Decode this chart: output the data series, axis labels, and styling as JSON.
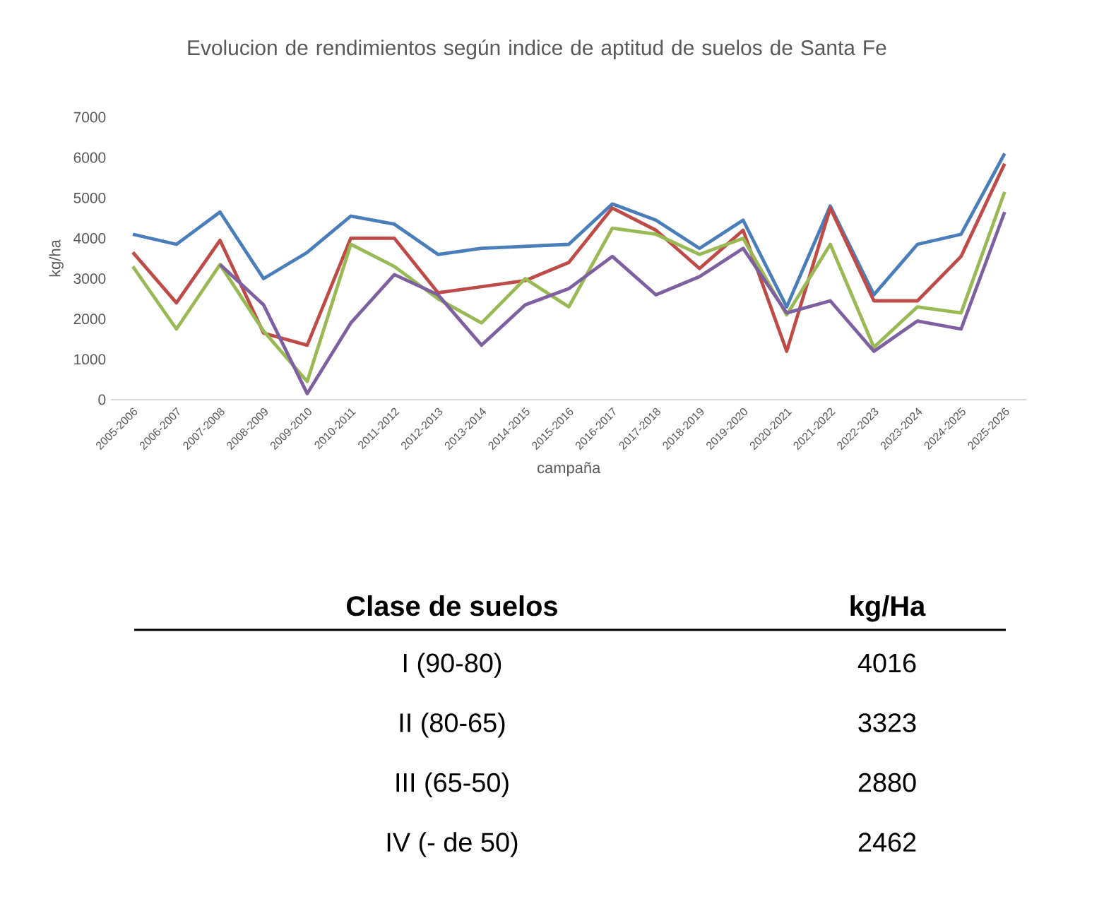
{
  "chart_data": {
    "type": "line",
    "title": "Evolucion de rendimientos según indice de aptitud de suelos de Santa Fe",
    "xlabel": "campaña",
    "ylabel": "kg/ha",
    "categories": [
      "2005-2006",
      "2006-2007",
      "2007-2008",
      "2008-2009",
      "2009-2010",
      "2010-2011",
      "2011-2012",
      "2012-2013",
      "2013-2014",
      "2014-2015",
      "2015-2016",
      "2016-2017",
      "2017-2018",
      "2018-2019",
      "2019-2020",
      "2020-2021",
      "2021-2022",
      "2022-2023",
      "2023-2024",
      "2024-2025",
      "2025-2026"
    ],
    "series": [
      {
        "color": "#4a7ebb",
        "values": [
          4100,
          3850,
          4650,
          3000,
          3650,
          4550,
          4350,
          3600,
          3750,
          3800,
          3850,
          4850,
          4450,
          3750,
          4450,
          2300,
          4800,
          2600,
          3850,
          4100,
          6100
        ]
      },
      {
        "color": "#be4b48",
        "values": [
          3650,
          2400,
          3950,
          1650,
          1350,
          4000,
          4000,
          2650,
          2800,
          2950,
          3400,
          4750,
          4200,
          3250,
          4200,
          1200,
          4750,
          2450,
          2450,
          3550,
          5850
        ]
      },
      {
        "color": "#98b954",
        "values": [
          3300,
          1750,
          3350,
          1700,
          450,
          3850,
          3300,
          2500,
          1900,
          3000,
          2300,
          4250,
          4100,
          3600,
          4000,
          2100,
          3850,
          1300,
          2300,
          2150,
          5150
        ]
      },
      {
        "color": "#7d60a0",
        "values": [
          null,
          null,
          3350,
          2350,
          150,
          1900,
          3100,
          2600,
          1350,
          2350,
          2750,
          3550,
          2600,
          3050,
          3750,
          2150,
          2450,
          1200,
          1950,
          1750,
          4650
        ]
      }
    ],
    "ylim": [
      0,
      7000
    ],
    "yticks": [
      0,
      1000,
      2000,
      3000,
      4000,
      5000,
      6000,
      7000
    ],
    "annotations": [
      "Clase de suelos",
      "kg/Ha",
      "I (90-80)",
      "4016",
      "II (80-65)",
      "3323",
      "III (65-50)",
      "2880",
      "IV (- de 50)",
      "2462"
    ]
  }
}
